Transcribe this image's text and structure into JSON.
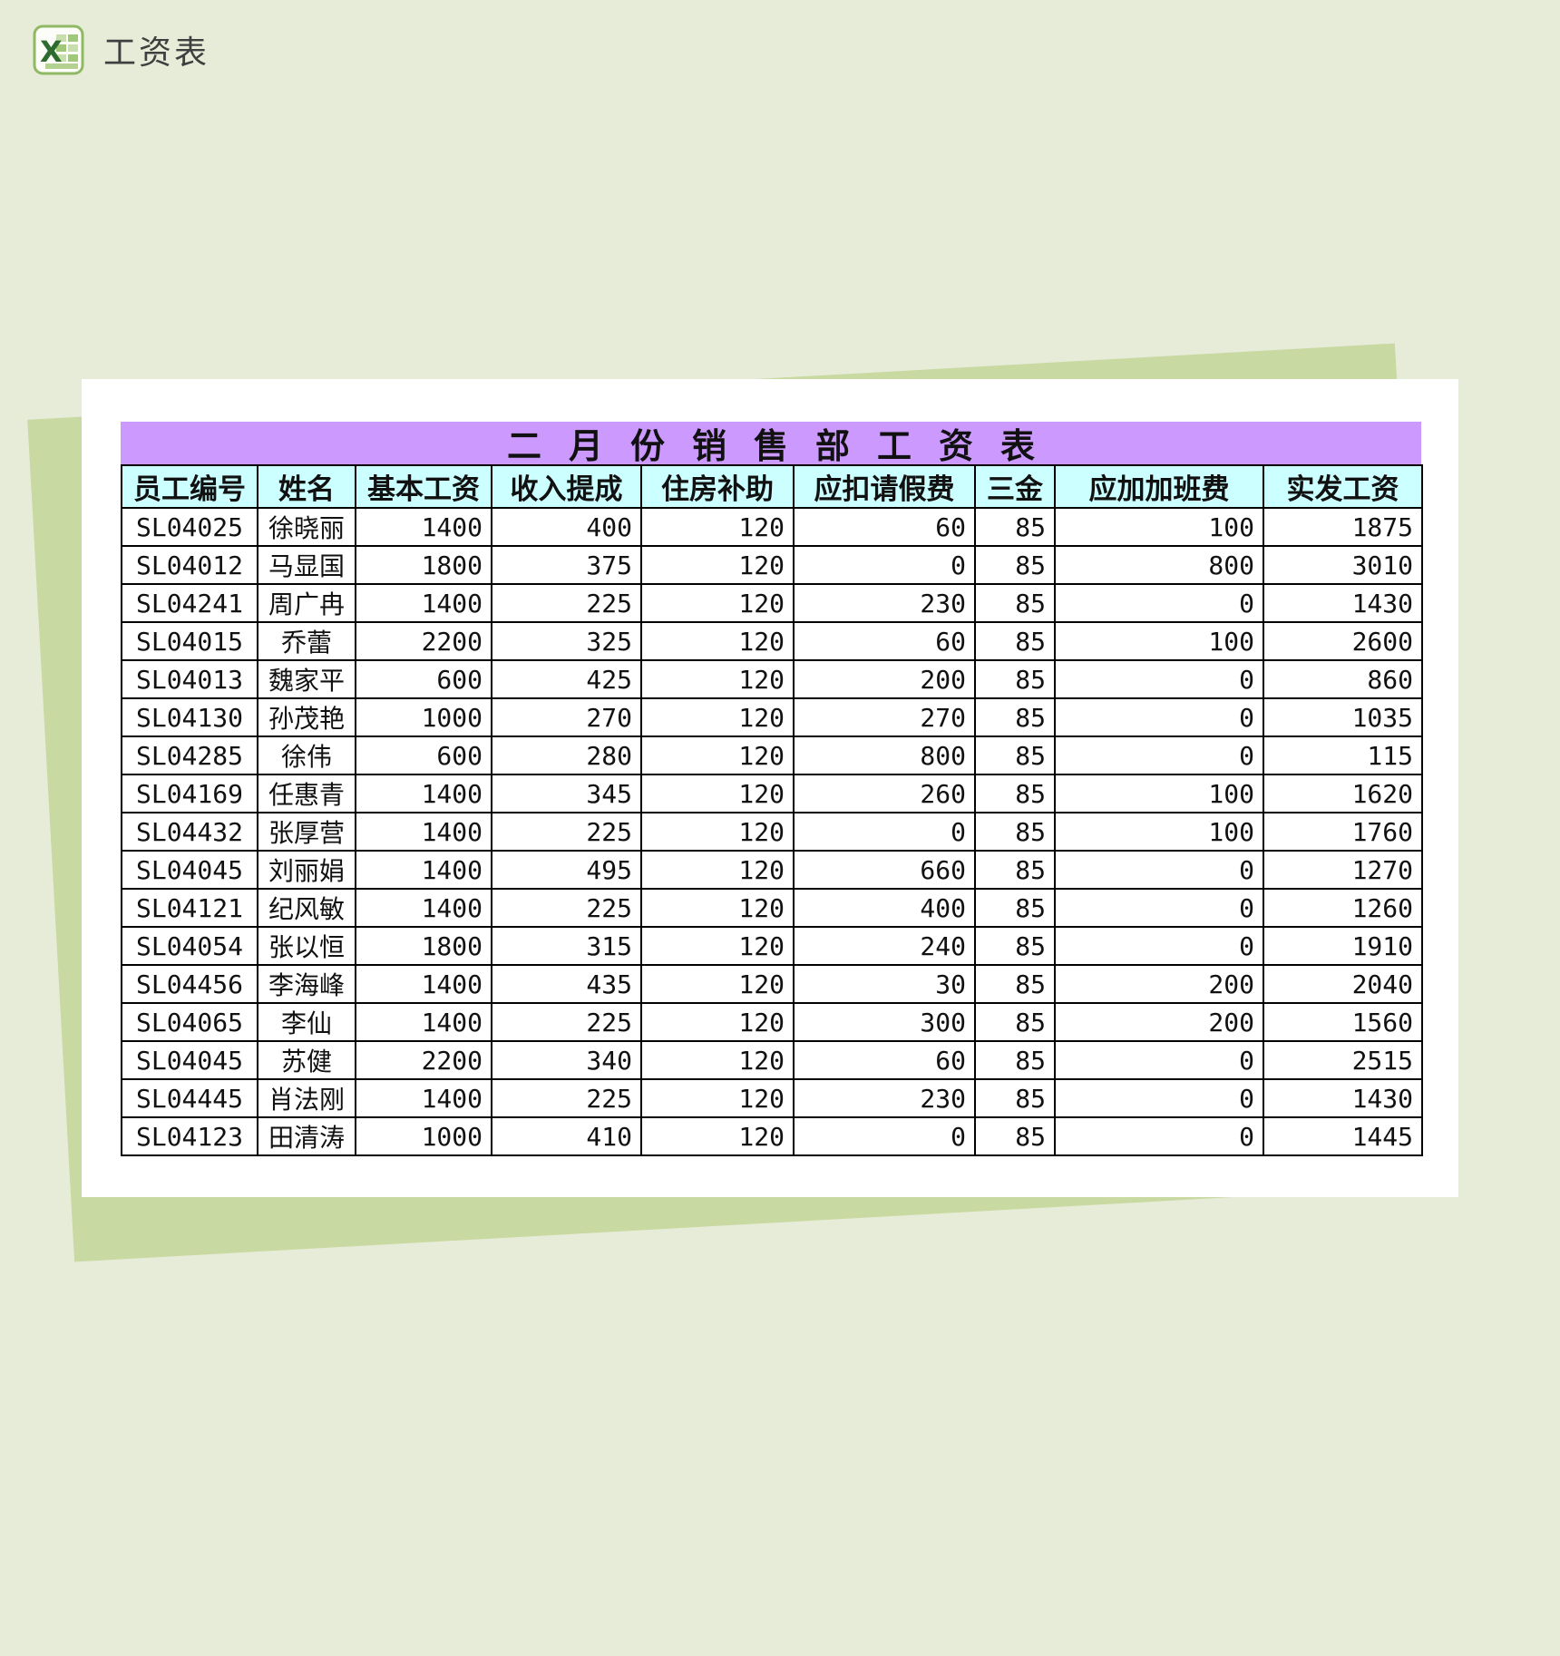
{
  "page": {
    "app_title": "工资表",
    "icon": "excel-icon"
  },
  "colors": {
    "page_bg": "#e7ecd8",
    "sheet_bg": "#c9d9a2",
    "card_bg": "#ffffff",
    "title_bg": "#cc99ff",
    "header_bg": "#ccffff",
    "border": "#000000",
    "text": "#111111"
  },
  "sheet": {
    "title": "二月份销售部工资表",
    "columns": [
      "员工编号",
      "姓名",
      "基本工资",
      "收入提成",
      "住房补助",
      "应扣请假费",
      "三金",
      "应加加班费",
      "实发工资"
    ],
    "rows": [
      [
        "SL04025",
        "徐晓丽",
        "1400",
        "400",
        "120",
        "60",
        "85",
        "100",
        "1875"
      ],
      [
        "SL04012",
        "马显国",
        "1800",
        "375",
        "120",
        "0",
        "85",
        "800",
        "3010"
      ],
      [
        "SL04241",
        "周广冉",
        "1400",
        "225",
        "120",
        "230",
        "85",
        "0",
        "1430"
      ],
      [
        "SL04015",
        "乔蕾",
        "2200",
        "325",
        "120",
        "60",
        "85",
        "100",
        "2600"
      ],
      [
        "SL04013",
        "魏家平",
        "600",
        "425",
        "120",
        "200",
        "85",
        "0",
        "860"
      ],
      [
        "SL04130",
        "孙茂艳",
        "1000",
        "270",
        "120",
        "270",
        "85",
        "0",
        "1035"
      ],
      [
        "SL04285",
        "徐伟",
        "600",
        "280",
        "120",
        "800",
        "85",
        "0",
        "115"
      ],
      [
        "SL04169",
        "任惠青",
        "1400",
        "345",
        "120",
        "260",
        "85",
        "100",
        "1620"
      ],
      [
        "SL04432",
        "张厚营",
        "1400",
        "225",
        "120",
        "0",
        "85",
        "100",
        "1760"
      ],
      [
        "SL04045",
        "刘丽娟",
        "1400",
        "495",
        "120",
        "660",
        "85",
        "0",
        "1270"
      ],
      [
        "SL04121",
        "纪风敏",
        "1400",
        "225",
        "120",
        "400",
        "85",
        "0",
        "1260"
      ],
      [
        "SL04054",
        "张以恒",
        "1800",
        "315",
        "120",
        "240",
        "85",
        "0",
        "1910"
      ],
      [
        "SL04456",
        "李海峰",
        "1400",
        "435",
        "120",
        "30",
        "85",
        "200",
        "2040"
      ],
      [
        "SL04065",
        "李仙",
        "1400",
        "225",
        "120",
        "300",
        "85",
        "200",
        "1560"
      ],
      [
        "SL04045",
        "苏健",
        "2200",
        "340",
        "120",
        "60",
        "85",
        "0",
        "2515"
      ],
      [
        "SL04445",
        "肖法刚",
        "1400",
        "225",
        "120",
        "230",
        "85",
        "0",
        "1430"
      ],
      [
        "SL04123",
        "田清涛",
        "1000",
        "410",
        "120",
        "0",
        "85",
        "0",
        "1445"
      ]
    ]
  }
}
